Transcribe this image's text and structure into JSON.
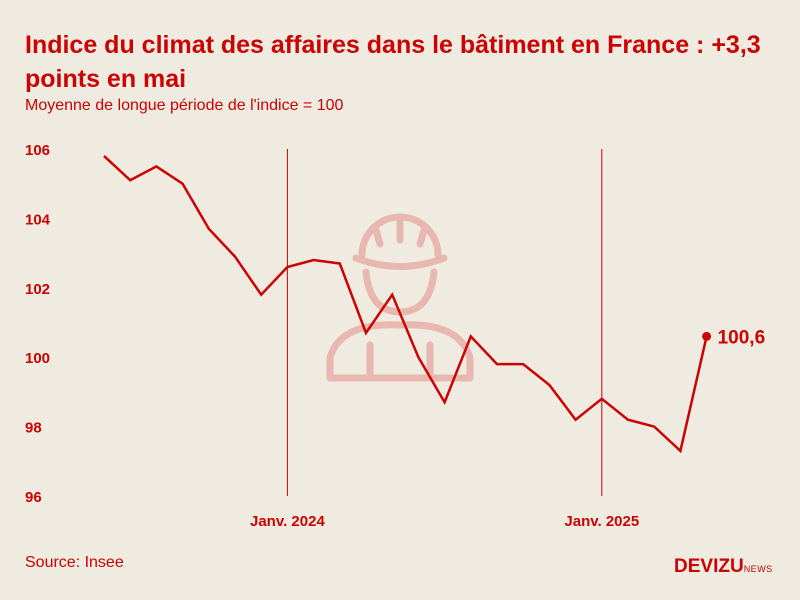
{
  "title": "Indice du climat des affaires dans le bâtiment en France : +3,3 points en mai",
  "subtitle": "Moyenne de longue période de l'indice = 100",
  "source": "Source: Insee",
  "brand": {
    "main": "DEVIZU",
    "suffix": "NEWS"
  },
  "colors": {
    "accent": "#cc0000",
    "background": "#efebe1",
    "illustration": "#e8b8b0"
  },
  "illustration_icon": "construction-worker-icon",
  "chart_data": {
    "type": "line",
    "title": "Indice du climat des affaires dans le bâtiment en France : +3,3 points en mai",
    "subtitle": "Moyenne de longue période de l'indice = 100",
    "xlabel": "",
    "ylabel": "",
    "ylim": [
      96,
      106
    ],
    "yticks": [
      96,
      98,
      100,
      102,
      104,
      106
    ],
    "x": [
      "2023-06",
      "2023-07",
      "2023-08",
      "2023-09",
      "2023-10",
      "2023-11",
      "2023-12",
      "2024-01",
      "2024-02",
      "2024-03",
      "2024-04",
      "2024-05",
      "2024-06",
      "2024-07",
      "2024-08",
      "2024-09",
      "2024-10",
      "2024-11",
      "2024-12",
      "2025-01",
      "2025-02",
      "2025-03",
      "2025-04",
      "2025-05"
    ],
    "series": [
      {
        "values": [
          105.8,
          105.1,
          105.5,
          105.0,
          103.7,
          102.9,
          101.8,
          102.6,
          102.8,
          102.7,
          100.7,
          101.8,
          100.0,
          98.7,
          100.6,
          99.8,
          99.8,
          99.2,
          98.2,
          98.8,
          98.2,
          98.0,
          97.3,
          100.6
        ]
      }
    ],
    "reference_lines": [
      {
        "x": "2024-01",
        "label": "Janv. 2024"
      },
      {
        "x": "2025-01",
        "label": "Janv. 2025"
      }
    ],
    "last_value_label": "100,6",
    "grid": false
  }
}
